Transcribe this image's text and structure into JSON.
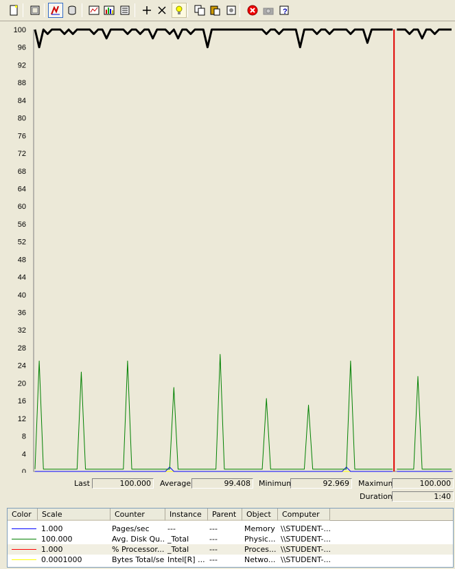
{
  "toolbar": {
    "buttons": [
      {
        "name": "new-counter-set-button",
        "icon": "new-document-icon"
      },
      {
        "name": "clear-display-button",
        "icon": "clear-display-icon"
      },
      {
        "name": "view-current-activity-button",
        "icon": "current-activity-icon",
        "pressed": true
      },
      {
        "name": "view-log-data-button",
        "icon": "log-data-icon"
      },
      {
        "name": "view-graph-button",
        "icon": "graph-view-icon"
      },
      {
        "name": "view-histogram-button",
        "icon": "histogram-icon"
      },
      {
        "name": "view-report-button",
        "icon": "report-icon"
      },
      {
        "name": "add-counter-button",
        "icon": "plus-icon"
      },
      {
        "name": "delete-counter-button",
        "icon": "delete-x-icon"
      },
      {
        "name": "highlight-button",
        "icon": "lightbulb-icon",
        "lit": true
      },
      {
        "name": "copy-properties-button",
        "icon": "copy-icon"
      },
      {
        "name": "paste-counter-list-button",
        "icon": "paste-icon"
      },
      {
        "name": "properties-button",
        "icon": "properties-icon"
      },
      {
        "name": "freeze-display-button",
        "icon": "stop-red-icon"
      },
      {
        "name": "update-data-button",
        "icon": "camera-icon"
      },
      {
        "name": "help-button",
        "icon": "help-icon"
      }
    ]
  },
  "chart_data": {
    "type": "line",
    "ylim": [
      0,
      100
    ],
    "yticks": [
      "100",
      "96",
      "92",
      "88",
      "84",
      "80",
      "76",
      "72",
      "68",
      "64",
      "60",
      "56",
      "52",
      "48",
      "44",
      "40",
      "36",
      "32",
      "28",
      "24",
      "20",
      "16",
      "12",
      "8",
      "4",
      "0"
    ],
    "grid": false,
    "legend_position": "bottom",
    "cursor_position_fraction": 0.855,
    "num_samples": 100,
    "series": [
      {
        "color": "#000000",
        "role": "processor-time",
        "values": [
          100,
          96,
          100,
          99,
          100,
          100,
          100,
          99,
          100,
          99,
          100,
          100,
          100,
          100,
          99,
          100,
          100,
          98,
          100,
          100,
          100,
          100,
          99,
          100,
          100,
          99,
          100,
          100,
          98,
          100,
          100,
          100,
          99,
          100,
          98,
          100,
          100,
          99,
          100,
          100,
          100,
          96,
          100,
          100,
          100,
          100,
          100,
          100,
          100,
          100,
          100,
          100,
          100,
          100,
          100,
          99,
          100,
          100,
          99,
          100,
          100,
          100,
          100,
          96,
          100,
          100,
          100,
          99,
          100,
          100,
          99,
          100,
          100,
          100,
          100,
          99,
          100,
          100,
          100,
          97,
          100,
          100,
          100,
          100,
          100,
          100,
          100,
          100,
          100,
          99,
          100,
          100,
          98,
          100,
          100,
          99,
          100,
          100,
          100,
          100
        ]
      },
      {
        "color": "#008000",
        "role": "avg-disk-queue",
        "values": [
          0.5,
          25,
          0.5,
          0.5,
          0.5,
          0.5,
          0.5,
          0.5,
          0.5,
          0.5,
          0.5,
          22.5,
          0.5,
          0.5,
          0.5,
          0.5,
          0.5,
          0.5,
          0.5,
          0.5,
          0.5,
          0.5,
          25,
          0.5,
          0.5,
          0.5,
          0.5,
          0.5,
          0.5,
          0.5,
          0.5,
          0.5,
          0.5,
          19,
          0.5,
          0.5,
          0.5,
          0.5,
          0.5,
          0.5,
          0.5,
          0.5,
          0.5,
          0.5,
          26.5,
          0.5,
          0.5,
          0.5,
          0.5,
          0.5,
          0.5,
          0.5,
          0.5,
          0.5,
          0.5,
          16.5,
          0.5,
          0.5,
          0.5,
          0.5,
          0.5,
          0.5,
          0.5,
          0.5,
          0.5,
          15,
          0.5,
          0.5,
          0.5,
          0.5,
          0.5,
          0.5,
          0.5,
          0.5,
          0.5,
          25,
          0.5,
          0.5,
          0.5,
          0.5,
          0.5,
          0.5,
          0.5,
          0.5,
          0.5,
          0.5,
          0.5,
          0.5,
          0.5,
          0.5,
          0.5,
          21.5,
          0.5,
          0.5,
          0.5,
          0.5,
          0.5,
          0.5,
          0.5,
          0.5
        ]
      },
      {
        "color": "#0000ff",
        "role": "pages-sec",
        "values": [
          0,
          0,
          0,
          0,
          0,
          0,
          0,
          0,
          0,
          0,
          0,
          0,
          0,
          0,
          0,
          0,
          0,
          0,
          0,
          0,
          0,
          0,
          0,
          0,
          0,
          0,
          0,
          0,
          0,
          0,
          0,
          0,
          1,
          0,
          0,
          0,
          0,
          0,
          0,
          0,
          0,
          0,
          0,
          0,
          0,
          0,
          0,
          0,
          0,
          0,
          0,
          0,
          0,
          0,
          0,
          0,
          0,
          0,
          0,
          0,
          0,
          0,
          0,
          0,
          0,
          0,
          0,
          0,
          0,
          0,
          0,
          0,
          0,
          0,
          1,
          0,
          0,
          0,
          0,
          0,
          0,
          0,
          0,
          0,
          0,
          0,
          0,
          0,
          0,
          0,
          0,
          0,
          0,
          0,
          0,
          0,
          0,
          0,
          0,
          0
        ]
      },
      {
        "color": "#ffff00",
        "role": "bytes-total-sec",
        "values": [
          0,
          0,
          0,
          0,
          0,
          0,
          0,
          0,
          0,
          0,
          0,
          0,
          0,
          0,
          0,
          0,
          0,
          0,
          0,
          0,
          0,
          0,
          0,
          0,
          0,
          0,
          0,
          0,
          0,
          0,
          0,
          0,
          0,
          0,
          0,
          0,
          0,
          0,
          0,
          0,
          0,
          0,
          0,
          0,
          0,
          0,
          0,
          0,
          0,
          0,
          0,
          0,
          0,
          0,
          0,
          0,
          0,
          0,
          0,
          0,
          0,
          0,
          0,
          0,
          0,
          0,
          0,
          0,
          0,
          0,
          0,
          0,
          0,
          0,
          0,
          0,
          0,
          0,
          0,
          0,
          0,
          0,
          0,
          0,
          0,
          0,
          0,
          0,
          0,
          0,
          0,
          0,
          0,
          0,
          0,
          0,
          0,
          0,
          0,
          0
        ]
      }
    ],
    "cursor_color": "#e00000"
  },
  "valuebar": {
    "last_label": "Last",
    "last_value": "100.000",
    "average_label": "Average",
    "average_value": "99.408",
    "minimum_label": "Minimum",
    "minimum_value": "92.969",
    "maximum_label": "Maximum",
    "maximum_value": "100.000",
    "duration_label": "Duration",
    "duration_value": "1:40"
  },
  "legend": {
    "headers": [
      "Color",
      "Scale",
      "Counter",
      "Instance",
      "Parent",
      "Object",
      "Computer"
    ],
    "rows": [
      {
        "color": "#0000ff",
        "scale": "1.000",
        "counter": "Pages/sec",
        "instance": "---",
        "parent": "---",
        "object": "Memory",
        "computer": "\\\\STUDENT-..."
      },
      {
        "color": "#008000",
        "scale": "100.000",
        "counter": "Avg. Disk Qu...",
        "instance": "_Total",
        "parent": "---",
        "object": "Physic...",
        "computer": "\\\\STUDENT-..."
      },
      {
        "color": "#ff0000",
        "scale": "1.000",
        "counter": "% Processor...",
        "instance": "_Total",
        "parent": "---",
        "object": "Proces...",
        "computer": "\\\\STUDENT-...",
        "selected": true
      },
      {
        "color": "#ffff00",
        "scale": "0.0001000",
        "counter": "Bytes Total/sec",
        "instance": "Intel[R] ...",
        "parent": "---",
        "object": "Netwo...",
        "computer": "\\\\STUDENT-..."
      }
    ]
  }
}
